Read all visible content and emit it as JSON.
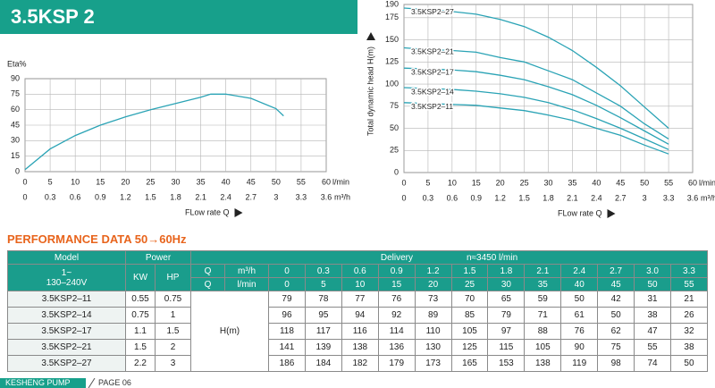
{
  "header": {
    "title": "3.5KSP 2"
  },
  "chart_data": [
    {
      "type": "line",
      "y_label": "Eta%",
      "x_label": "FLow rate Q",
      "x_unit": "l/min",
      "x2_unit": "m³/h",
      "x": [
        0,
        5,
        10,
        15,
        20,
        25,
        30,
        35,
        37,
        40,
        45,
        50,
        51.5
      ],
      "series": [
        {
          "color": "#2aa3b5",
          "values": [
            2,
            22,
            35,
            45,
            53,
            60,
            66,
            72,
            75,
            75,
            71,
            61,
            54
          ]
        }
      ],
      "xlim": [
        0,
        60
      ],
      "xticks": [
        0,
        5,
        10,
        15,
        20,
        25,
        30,
        35,
        40,
        45,
        50,
        55,
        60
      ],
      "x2lim": [
        0,
        3.6
      ],
      "x2ticks": [
        0,
        0.3,
        0.6,
        0.9,
        1.2,
        1.5,
        1.8,
        2.1,
        2.4,
        2.7,
        3.0,
        3.3,
        3.6
      ],
      "ylim": [
        0,
        90
      ],
      "yticks": [
        0,
        15,
        30,
        45,
        60,
        75,
        90
      ],
      "grid": true
    },
    {
      "type": "line",
      "y_label": "Total dynamic head H(m)",
      "x_label": "FLow rate Q",
      "x_unit": "l/min",
      "x2_unit": "m³/h",
      "x": [
        0,
        5,
        10,
        15,
        20,
        25,
        30,
        35,
        40,
        45,
        50,
        55
      ],
      "series": [
        {
          "name": "3.5KSP2–27",
          "color": "#2aa3b5",
          "values": [
            186,
            184,
            182,
            179,
            173,
            165,
            153,
            138,
            119,
            98,
            74,
            50
          ]
        },
        {
          "name": "3.5KSP2–21",
          "color": "#2aa3b5",
          "values": [
            141,
            139,
            138,
            136,
            130,
            125,
            115,
            105,
            90,
            75,
            55,
            38
          ]
        },
        {
          "name": "3.5KSP2–17",
          "color": "#2aa3b5",
          "values": [
            118,
            117,
            116,
            114,
            110,
            105,
            97,
            88,
            76,
            62,
            47,
            32
          ]
        },
        {
          "name": "3.5KSP2–14",
          "color": "#2aa3b5",
          "values": [
            96,
            95,
            94,
            92,
            89,
            85,
            79,
            71,
            61,
            50,
            38,
            26
          ]
        },
        {
          "name": "3.5KSP2–11",
          "color": "#2aa3b5",
          "values": [
            79,
            78,
            77,
            76,
            73,
            70,
            65,
            59,
            50,
            42,
            31,
            21
          ]
        }
      ],
      "xlim": [
        0,
        60
      ],
      "xticks": [
        0,
        5,
        10,
        15,
        20,
        25,
        30,
        35,
        40,
        45,
        50,
        55,
        60
      ],
      "x2lim": [
        0,
        3.6
      ],
      "x2ticks": [
        0,
        0.3,
        0.6,
        0.9,
        1.2,
        1.5,
        1.8,
        2.1,
        2.4,
        2.7,
        3.0,
        3.3,
        3.6
      ],
      "ylim": [
        0,
        190
      ],
      "yticks": [
        0,
        25,
        50,
        75,
        100,
        125,
        150,
        175,
        190
      ],
      "grid": true
    }
  ],
  "table": {
    "title": "PERFORMANCE DATA 50→60Hz",
    "head": {
      "model": "Model",
      "power": "Power",
      "delivery": "Delivery",
      "speed": "n≈3450  l/min",
      "voltage": [
        "1~",
        "130–240V"
      ],
      "kw": "KW",
      "hp": "HP",
      "q": "Q",
      "m3h": "m³/h",
      "lmin": "l/min",
      "h": "H(m)"
    },
    "q_m3h": [
      "0",
      "0.3",
      "0.6",
      "0.9",
      "1.2",
      "1.5",
      "1.8",
      "2.1",
      "2.4",
      "2.7",
      "3.0",
      "3.3"
    ],
    "q_lmin": [
      0,
      5,
      10,
      15,
      20,
      25,
      30,
      35,
      40,
      45,
      50,
      55
    ],
    "rows": [
      {
        "model": "3.5KSP2–11",
        "kw": 0.55,
        "hp": 0.75,
        "h": [
          79,
          78,
          77,
          76,
          73,
          70,
          65,
          59,
          50,
          42,
          31,
          21
        ]
      },
      {
        "model": "3.5KSP2–14",
        "kw": 0.75,
        "hp": 1,
        "h": [
          96,
          95,
          94,
          92,
          89,
          85,
          79,
          71,
          61,
          50,
          38,
          26
        ]
      },
      {
        "model": "3.5KSP2–17",
        "kw": 1.1,
        "hp": 1.5,
        "h": [
          118,
          117,
          116,
          114,
          110,
          105,
          97,
          88,
          76,
          62,
          47,
          32
        ]
      },
      {
        "model": "3.5KSP2–21",
        "kw": 1.5,
        "hp": 2,
        "h": [
          141,
          139,
          138,
          136,
          130,
          125,
          115,
          105,
          90,
          75,
          55,
          38
        ]
      },
      {
        "model": "3.5KSP2–27",
        "kw": 2.2,
        "hp": 3,
        "h": [
          186,
          184,
          182,
          179,
          173,
          165,
          153,
          138,
          119,
          98,
          74,
          50
        ]
      }
    ]
  },
  "footer": {
    "brand": "KESHENG PUMP",
    "page": "PAGE 06"
  }
}
